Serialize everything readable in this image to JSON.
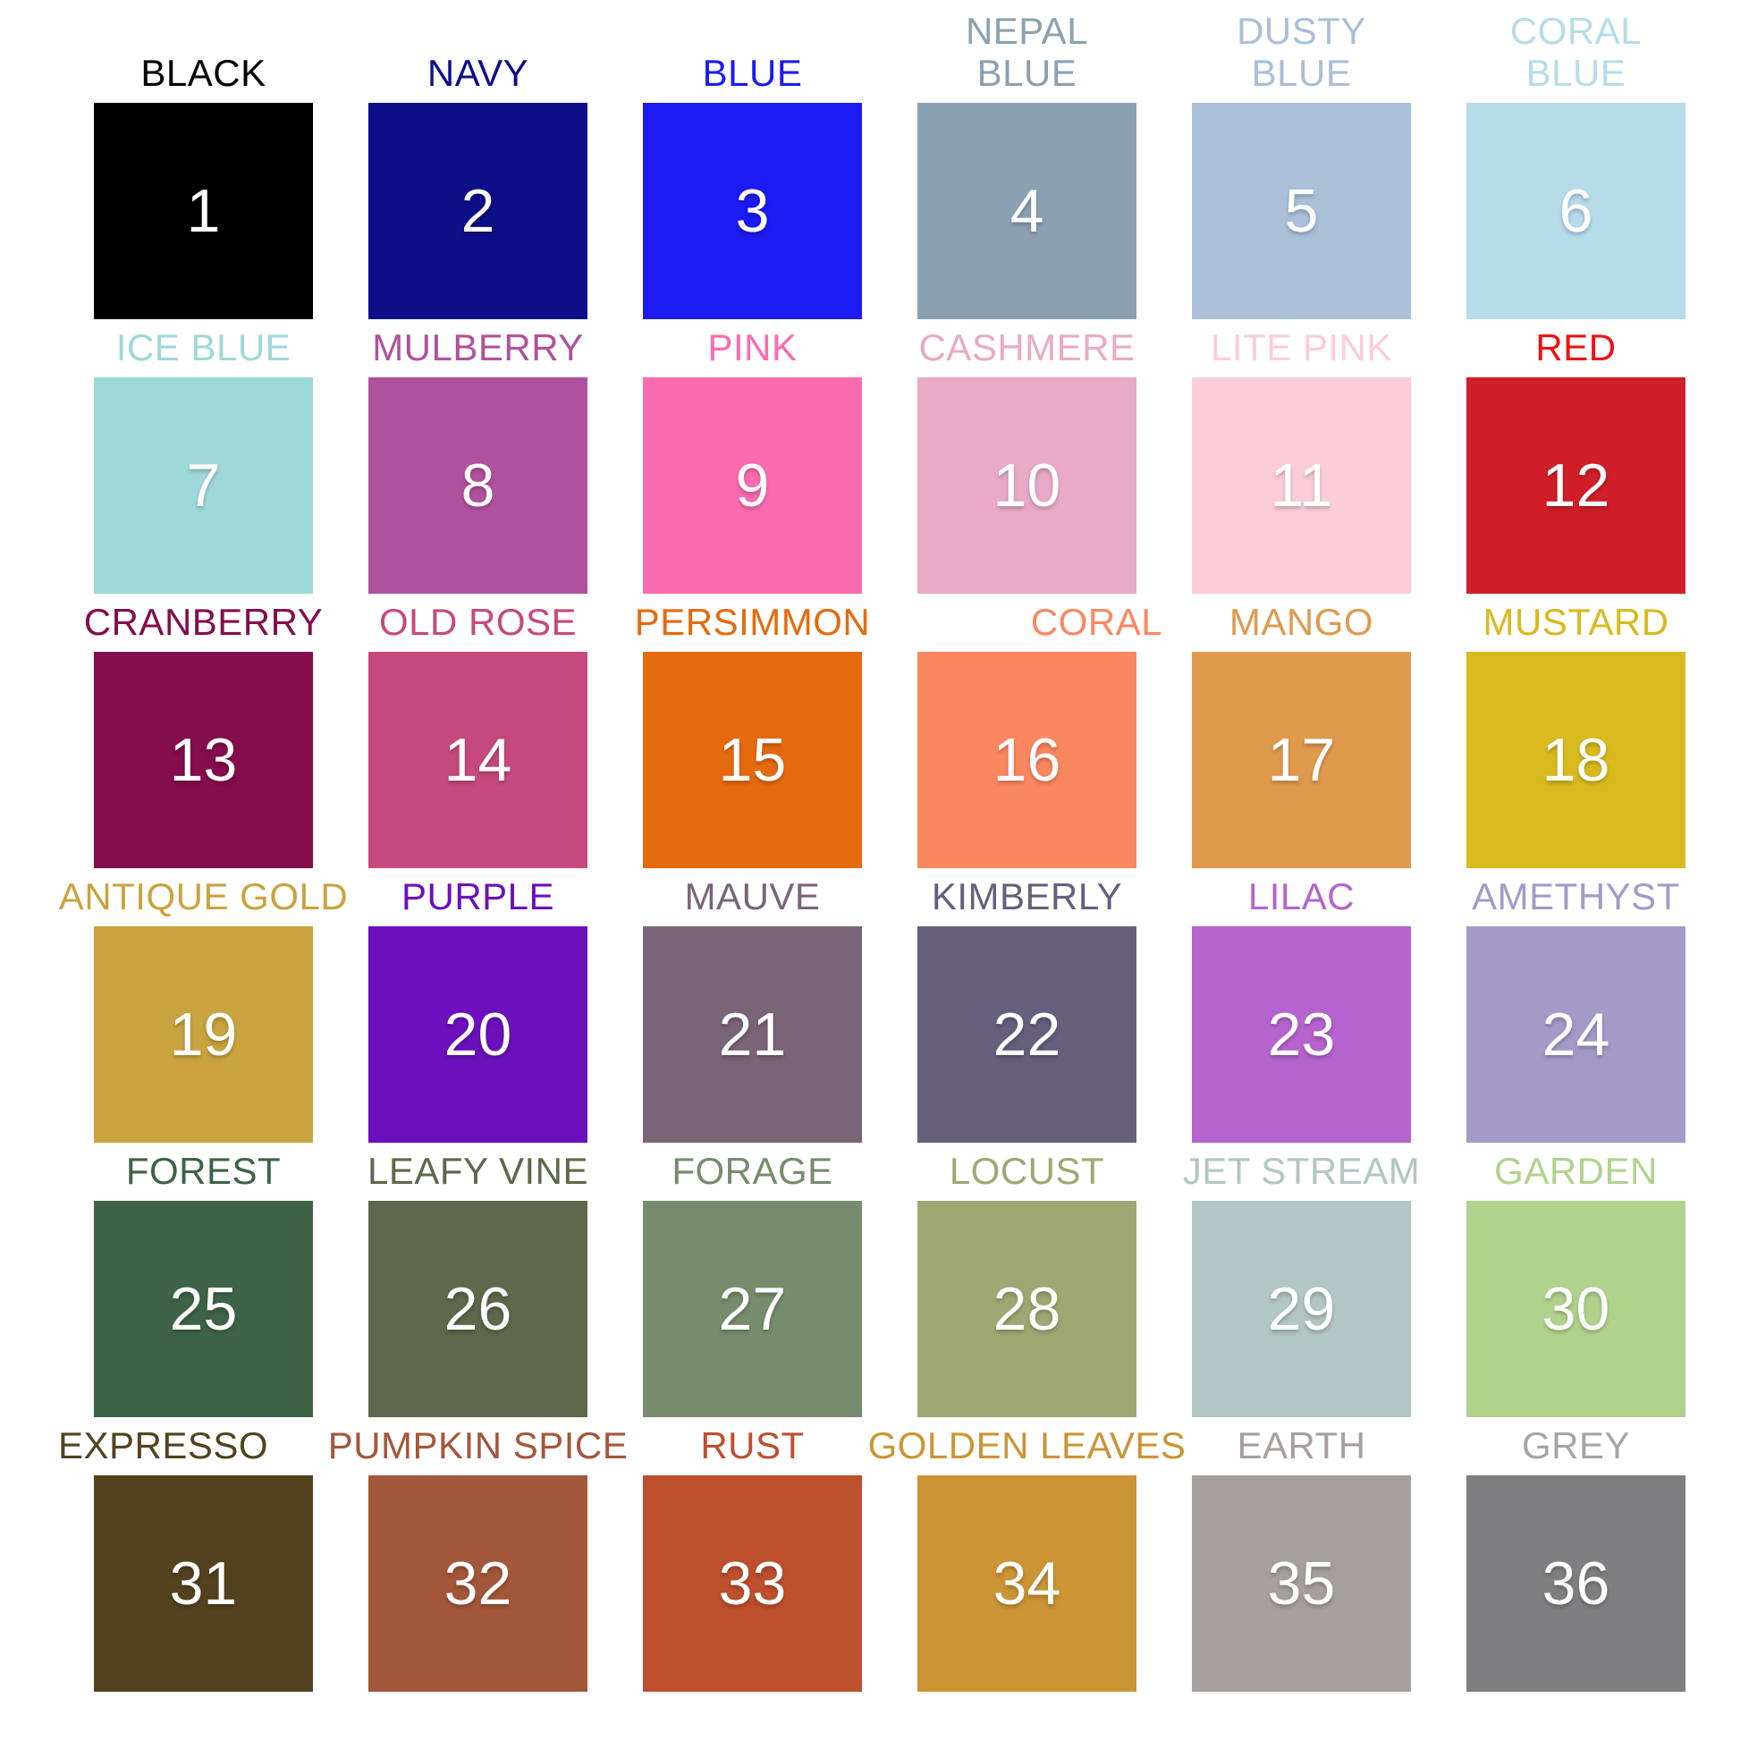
{
  "page": {
    "background": "#ffffff",
    "description": "Color options chart with 36 numbered fabric color swatches"
  },
  "swatches": [
    {
      "number": 1,
      "name": "BLACK",
      "color": "#000000"
    },
    {
      "number": 2,
      "name": "NAVY",
      "color": "#0e0e88"
    },
    {
      "number": 3,
      "name": "BLUE",
      "color": "#1b1bf2"
    },
    {
      "number": 4,
      "name": "NEPAL BLUE",
      "color": "#8aa1b2"
    },
    {
      "number": 5,
      "name": "DUSTY BLUE",
      "color": "#aabfd8"
    },
    {
      "number": 6,
      "name": "CORAL BLUE",
      "color": "#b6dcea"
    },
    {
      "number": 7,
      "name": "ICE BLUE",
      "color": "#9fd8d8"
    },
    {
      "number": 8,
      "name": "MULBERRY",
      "color": "#b0519e"
    },
    {
      "number": 9,
      "name": "PINK",
      "color": "#fb6bb0"
    },
    {
      "number": 10,
      "name": "CASHMERE",
      "color": "#e8aac7"
    },
    {
      "number": 11,
      "name": "LITE PINK",
      "color": "#fbcdd8"
    },
    {
      "number": 12,
      "name": "RED",
      "color": "#d01f28",
      "label_color": "#ee1111"
    },
    {
      "number": 13,
      "name": "CRANBERRY",
      "color": "#840d4c"
    },
    {
      "number": 14,
      "name": "OLD ROSE",
      "color": "#c5497e"
    },
    {
      "number": 15,
      "name": "PERSIMMON",
      "color": "#e56a0e"
    },
    {
      "number": 16,
      "name": "CORAL",
      "color": "#fb8760"
    },
    {
      "number": 17,
      "name": "MANGO",
      "color": "#e09a4e"
    },
    {
      "number": 18,
      "name": "MUSTARD",
      "color": "#d8ba1e"
    },
    {
      "number": 19,
      "name": "ANTIQUE GOLD",
      "color": "#c9a33f"
    },
    {
      "number": 20,
      "name": "PURPLE",
      "color": "#6b10bc"
    },
    {
      "number": 21,
      "name": "MAUVE",
      "color": "#7a6478"
    },
    {
      "number": 22,
      "name": "KIMBERLY",
      "color": "#655f7d"
    },
    {
      "number": 23,
      "name": "LILAC",
      "color": "#b563cf"
    },
    {
      "number": 24,
      "name": "AMETHYST",
      "color": "#a49ac8"
    },
    {
      "number": 25,
      "name": "FOREST",
      "color": "#3e6347"
    },
    {
      "number": 26,
      "name": "LEAFY VINE",
      "color": "#5e684a"
    },
    {
      "number": 27,
      "name": "FORAGE",
      "color": "#768c6c"
    },
    {
      "number": 28,
      "name": "LOCUST",
      "color": "#9fa873"
    },
    {
      "number": 29,
      "name": "JET STREAM",
      "color": "#b2c6c3"
    },
    {
      "number": 30,
      "name": "GARDEN",
      "color": "#b1d28c"
    },
    {
      "number": 31,
      "name": "EXPRESSO",
      "color": "#53421f"
    },
    {
      "number": 32,
      "name": "PUMPKIN SPICE",
      "color": "#a3573a"
    },
    {
      "number": 33,
      "name": "RUST",
      "color": "#bd4f2e"
    },
    {
      "number": 34,
      "name": "GOLDEN LEAVES",
      "color": "#cb9434"
    },
    {
      "number": 35,
      "name": "EARTH",
      "color": "#a79f9d"
    },
    {
      "number": 36,
      "name": "GREY",
      "color": "#7f7f81",
      "label_color": "#a5a5a5"
    }
  ]
}
